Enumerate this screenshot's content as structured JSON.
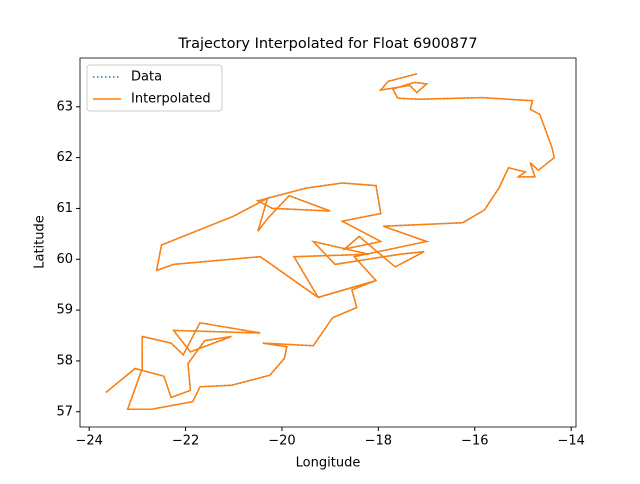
{
  "chart_data": {
    "type": "line",
    "title": "Trajectory Interpolated for Float 6900877",
    "x_label": "Longitude",
    "y_label": "Latitude",
    "x": [
      -23.65,
      -23.05,
      -22.45,
      -22.3,
      -21.9,
      -21.95,
      -21.6,
      -21.05,
      -21.9,
      -22.25,
      -20.45,
      -21.7,
      -22.05,
      -22.3,
      -22.9,
      -22.9,
      -23.2,
      -22.7,
      -21.85,
      -21.7,
      -21.05,
      -20.25,
      -19.95,
      -19.9,
      -20.4,
      -19.35,
      -18.95,
      -18.45,
      -18.55,
      -18.05,
      -19.25,
      -19.75,
      -18.2,
      -19.35,
      -18.9,
      -17.55,
      -17.05,
      -17.65,
      -18.4,
      -18.7,
      -17.95,
      -18.75,
      -17.95,
      -18.05,
      -18.75,
      -19.5,
      -20.5,
      -20.2,
      -19.0,
      -19.85,
      -20.3,
      -20.5,
      -20.3,
      -21.0,
      -22.5,
      -22.6,
      -22.25,
      -20.45,
      -19.25,
      -18.05,
      -18.5,
      -17.0,
      -17.9,
      -16.25,
      -15.8,
      -15.5,
      -15.3,
      -14.95,
      -15.1,
      -14.75,
      -14.85,
      -14.68,
      -14.35,
      -14.4,
      -14.65,
      -14.85,
      -14.8,
      -15.85,
      -17.15,
      -17.6,
      -17.7,
      -17.25,
      -17.0,
      -17.2,
      -17.35,
      -17.95,
      -17.8,
      -17.2
    ],
    "series": [
      {
        "name": "Data",
        "color": "#1f77b4",
        "style": "dotted",
        "values": [
          57.38,
          57.85,
          57.7,
          57.28,
          57.42,
          57.95,
          58.4,
          58.48,
          58.18,
          58.6,
          58.55,
          58.75,
          58.12,
          58.35,
          58.48,
          57.85,
          57.05,
          57.05,
          57.2,
          57.49,
          57.52,
          57.72,
          58.05,
          58.28,
          58.35,
          58.3,
          58.85,
          59.05,
          59.4,
          59.58,
          59.25,
          60.05,
          60.1,
          60.35,
          59.9,
          60.1,
          60.15,
          59.85,
          60.45,
          60.2,
          60.35,
          60.75,
          60.9,
          61.45,
          61.5,
          61.4,
          61.15,
          61.0,
          60.95,
          61.25,
          60.8,
          60.55,
          61.2,
          60.85,
          60.28,
          59.78,
          59.9,
          60.05,
          59.25,
          59.58,
          60.05,
          60.35,
          60.65,
          60.72,
          60.97,
          61.4,
          61.8,
          61.72,
          61.62,
          61.62,
          61.9,
          61.75,
          62.0,
          62.2,
          62.85,
          62.95,
          63.12,
          63.18,
          63.15,
          63.17,
          63.35,
          63.48,
          63.45,
          63.28,
          63.42,
          63.33,
          63.5,
          63.65
        ]
      },
      {
        "name": "Interpolated",
        "color": "#ff7f0e",
        "style": "solid",
        "values": [
          57.38,
          57.85,
          57.7,
          57.28,
          57.42,
          57.95,
          58.4,
          58.48,
          58.18,
          58.6,
          58.55,
          58.75,
          58.12,
          58.35,
          58.48,
          57.85,
          57.05,
          57.05,
          57.2,
          57.49,
          57.52,
          57.72,
          58.05,
          58.28,
          58.35,
          58.3,
          58.85,
          59.05,
          59.4,
          59.58,
          59.25,
          60.05,
          60.1,
          60.35,
          59.9,
          60.1,
          60.15,
          59.85,
          60.45,
          60.2,
          60.35,
          60.75,
          60.9,
          61.45,
          61.5,
          61.4,
          61.15,
          61.0,
          60.95,
          61.25,
          60.8,
          60.55,
          61.2,
          60.85,
          60.28,
          59.78,
          59.9,
          60.05,
          59.25,
          59.58,
          60.05,
          60.35,
          60.65,
          60.72,
          60.97,
          61.4,
          61.8,
          61.72,
          61.62,
          61.62,
          61.9,
          61.75,
          62.0,
          62.2,
          62.85,
          62.95,
          63.12,
          63.18,
          63.15,
          63.17,
          63.35,
          63.48,
          63.45,
          63.28,
          63.42,
          63.33,
          63.5,
          63.65
        ]
      }
    ],
    "xlim": [
      -24.19,
      -13.9
    ],
    "ylim": [
      56.7,
      63.96
    ],
    "xticks": [
      {
        "value": -24,
        "label": "−24"
      },
      {
        "value": -22,
        "label": "−22"
      },
      {
        "value": -20,
        "label": "−20"
      },
      {
        "value": -18,
        "label": "−18"
      },
      {
        "value": -16,
        "label": "−16"
      },
      {
        "value": -14,
        "label": "−14"
      }
    ],
    "yticks": [
      57,
      58,
      59,
      60,
      61,
      62,
      63
    ],
    "legend": "upper left"
  }
}
